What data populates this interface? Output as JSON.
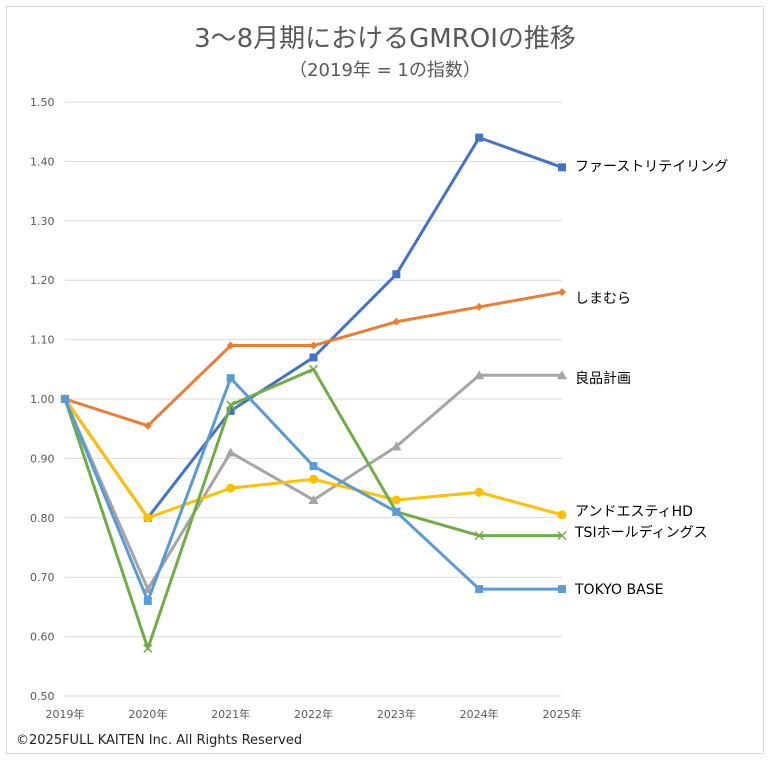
{
  "chart_data": {
    "type": "line",
    "title": "3〜8月期におけるGMROIの推移",
    "subtitle": "（2019年 = 1の指数）",
    "xlabel": "",
    "ylabel": "",
    "categories": [
      "2019年",
      "2020年",
      "2021年",
      "2022年",
      "2023年",
      "2024年",
      "2025年"
    ],
    "ylim": [
      0.5,
      1.5
    ],
    "yticks": [
      "0.50",
      "0.60",
      "0.70",
      "0.80",
      "0.90",
      "1.00",
      "1.10",
      "1.20",
      "1.30",
      "1.40",
      "1.50"
    ],
    "grid": true,
    "legend": "right-end labels",
    "series": [
      {
        "name": "ファーストリテイリング",
        "color": "#4472c4",
        "marker": "square",
        "values": [
          1.0,
          0.8,
          0.98,
          1.07,
          1.21,
          1.44,
          1.39
        ]
      },
      {
        "name": "しまむら",
        "color": "#ed7d31",
        "marker": "diamond",
        "values": [
          1.0,
          0.955,
          1.09,
          1.09,
          1.13,
          1.155,
          1.18
        ]
      },
      {
        "name": "良品計画",
        "color": "#a5a5a5",
        "marker": "triangle",
        "values": [
          1.0,
          0.68,
          0.91,
          0.83,
          0.92,
          1.04,
          1.04
        ]
      },
      {
        "name": "アンドエスティHD",
        "color": "#ffc000",
        "marker": "circle",
        "values": [
          1.0,
          0.8,
          0.85,
          0.865,
          0.83,
          0.843,
          0.805
        ]
      },
      {
        "name": "TSIホールディングス",
        "color": "#70ad47",
        "marker": "x",
        "values": [
          1.0,
          0.58,
          0.99,
          1.05,
          0.81,
          0.77,
          0.77
        ]
      },
      {
        "name": "TOKYO BASE",
        "color": "#5b9bd5",
        "marker": "square",
        "values": [
          1.0,
          0.66,
          1.035,
          0.887,
          0.81,
          0.68,
          0.68
        ]
      }
    ]
  },
  "copyright": "©2025FULL KAITEN Inc. All Rights Reserved"
}
